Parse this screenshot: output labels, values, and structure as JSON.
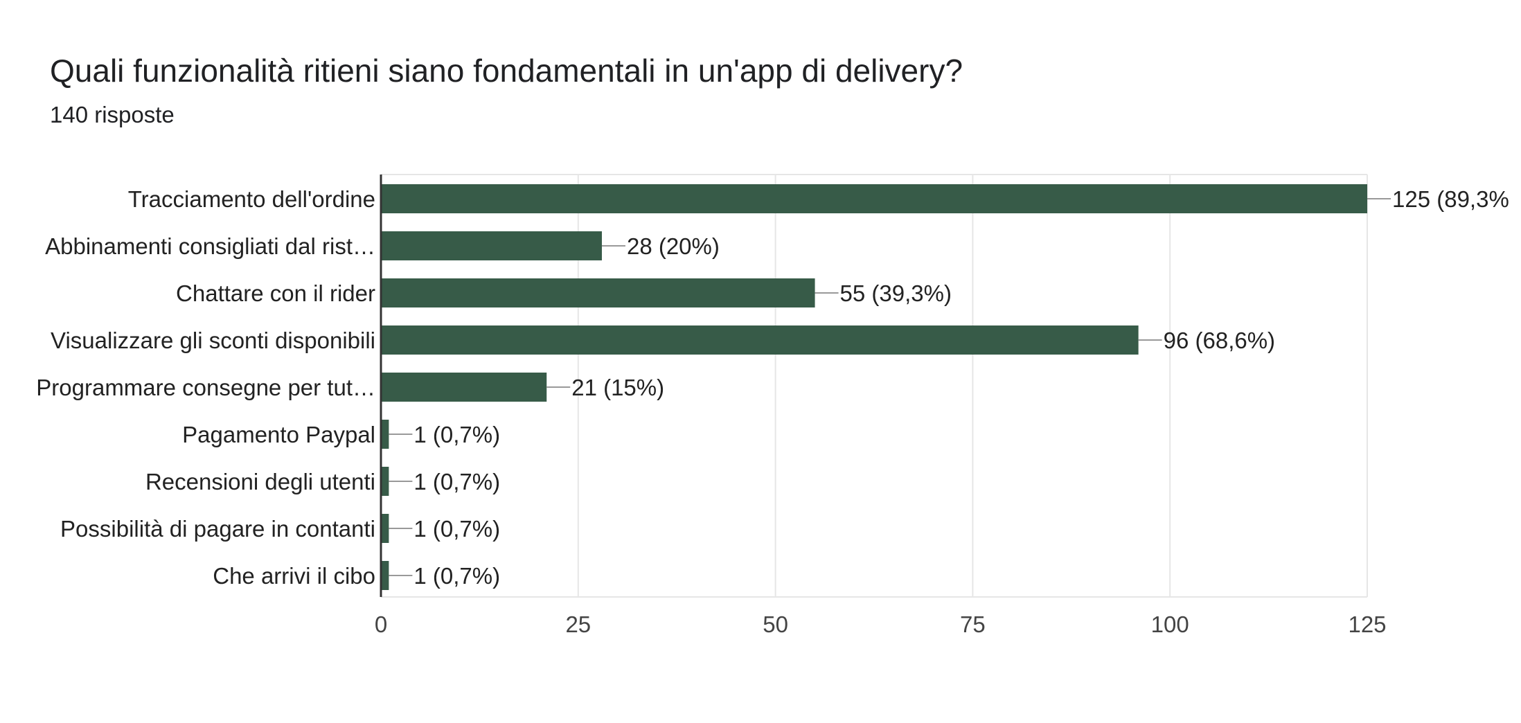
{
  "header": {
    "title": "Quali funzionalità ritieni siano fondamentali in un'app di delivery?",
    "subtitle": "140 risposte"
  },
  "colors": {
    "bar": "#375b48",
    "grid": "#e6e6e6",
    "axis": "#333333",
    "leader": "#999999"
  },
  "chart_data": {
    "type": "bar",
    "orientation": "horizontal",
    "categories": [
      "Tracciamento dell'ordine",
      "Abbinamenti consigliati dal rist…",
      "Chattare con il rider",
      "Visualizzare gli sconti disponibili",
      "Programmare consegne per tut…",
      "Pagamento Paypal",
      "Recensioni degli utenti",
      "Possibilità di pagare in contanti",
      "Che arrivi il cibo"
    ],
    "values": [
      125,
      28,
      55,
      96,
      21,
      1,
      1,
      1,
      1
    ],
    "value_labels": [
      "125 (89,3%",
      "28 (20%)",
      "55 (39,3%)",
      "96 (68,6%)",
      "21 (15%)",
      "1 (0,7%)",
      "1 (0,7%)",
      "1 (0,7%)",
      "1 (0,7%)"
    ],
    "xlim": [
      0,
      125
    ],
    "xticks": [
      0,
      25,
      50,
      75,
      100,
      125
    ],
    "xtick_labels": [
      "0",
      "25",
      "50",
      "75",
      "100",
      "125"
    ],
    "grid": true,
    "legend": "none"
  }
}
